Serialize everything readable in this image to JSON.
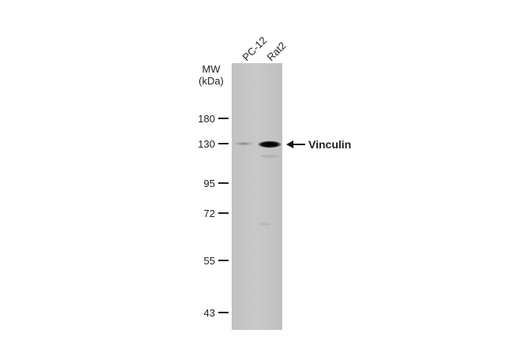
{
  "lanes": [
    "PC-12",
    "Rat2"
  ],
  "mw_label": {
    "line1": "MW",
    "line2": "(kDa)"
  },
  "markers": [
    "180",
    "130",
    "95",
    "72",
    "55",
    "43"
  ],
  "band_label": "Vinculin"
}
